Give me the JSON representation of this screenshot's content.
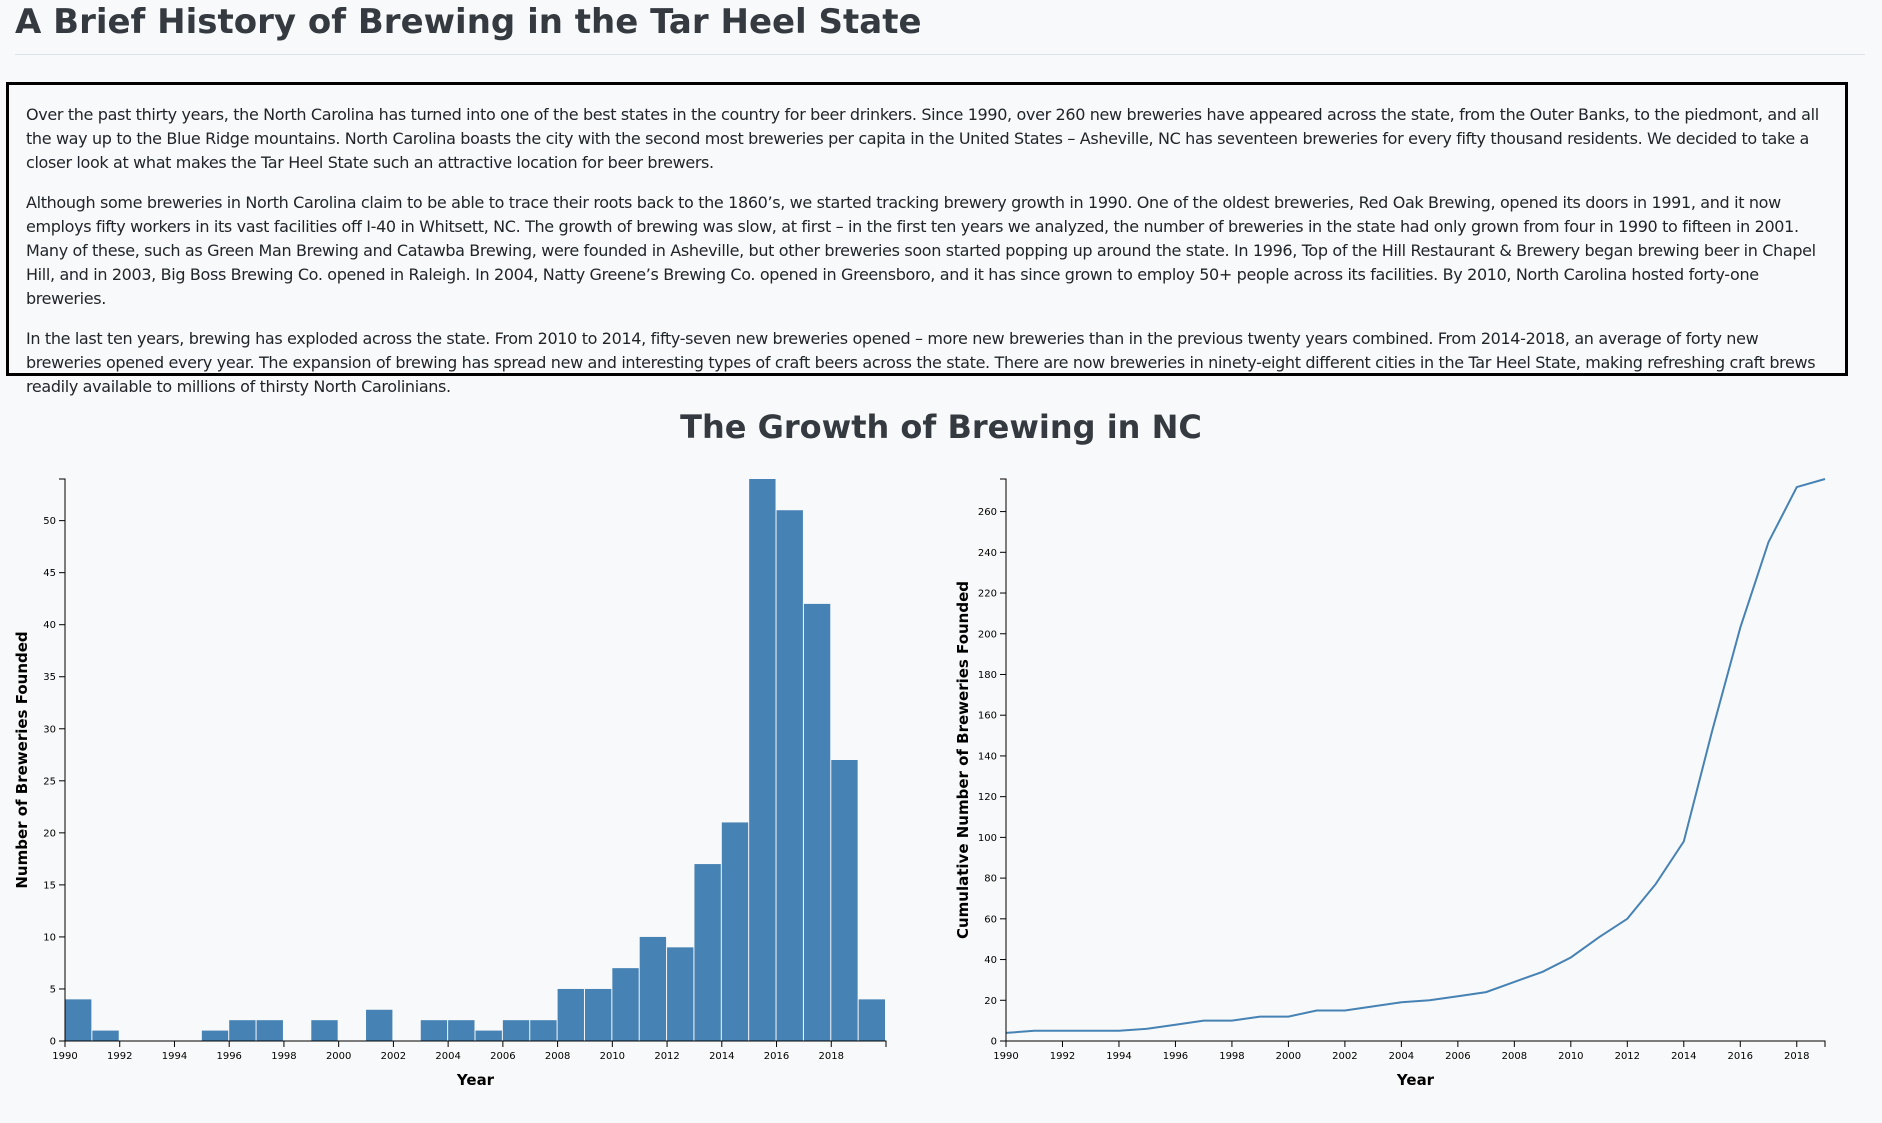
{
  "page": {
    "title": "A Brief History of Brewing in the Tar Heel State",
    "paragraphs": [
      "Over the past thirty years, the North Carolina has turned into one of the best states in the country for beer drinkers. Since 1990, over 260 new breweries have appeared across the state, from the Outer Banks, to the piedmont, and all the way up to the Blue Ridge mountains. North Carolina boasts the city with the second most breweries per capita in the United States – Asheville, NC has seventeen breweries for every fifty thousand residents. We decided to take a closer look at what makes the Tar Heel State such an attractive location for beer brewers.",
      "Although some breweries in North Carolina claim to be able to trace their roots back to the 1860’s, we started tracking brewery growth in 1990. One of the oldest breweries, Red Oak Brewing, opened its doors in 1991, and it now employs fifty workers in its vast facilities off I-40 in Whitsett, NC. The growth of brewing was slow, at first – in the first ten years we analyzed, the number of breweries in the state had only grown from four in 1990 to fifteen in 2001. Many of these, such as Green Man Brewing and Catawba Brewing, were founded in Asheville, but other breweries soon started popping up around the state. In 1996, Top of the Hill Restaurant & Brewery began brewing beer in Chapel Hill, and in 2003, Big Boss Brewing Co. opened in Raleigh. In 2004, Natty Greene’s Brewing Co. opened in Greensboro, and it has since grown to employ 50+ people across its facilities. By 2010, North Carolina hosted forty-one breweries.",
      "In the last ten years, brewing has exploded across the state. From 2010 to 2014, fifty-seven new breweries opened – more new breweries than in the previous twenty years combined. From 2014-2018, an average of forty new breweries opened every year. The expansion of brewing has spread new and interesting types of craft beers across the state. There are now breweries in ninety-eight different cities in the Tar Heel State, making refreshing craft brews readily available to millions of thirsty North Carolinians."
    ],
    "chart_heading": "The Growth of Brewing in NC",
    "bar_color": "#4682b4",
    "line_color": "#4682b4"
  },
  "chart_data": [
    {
      "type": "bar",
      "xlabel": "Year",
      "ylabel": "Number of Breweries Founded",
      "x": [
        1990,
        1991,
        1992,
        1993,
        1994,
        1995,
        1996,
        1997,
        1998,
        1999,
        2000,
        2001,
        2002,
        2003,
        2004,
        2005,
        2006,
        2007,
        2008,
        2009,
        2010,
        2011,
        2012,
        2013,
        2014,
        2015,
        2016,
        2017,
        2018,
        2019
      ],
      "values": [
        4,
        1,
        0,
        0,
        0,
        1,
        2,
        2,
        0,
        2,
        0,
        3,
        0,
        2,
        2,
        1,
        2,
        2,
        5,
        5,
        7,
        10,
        9,
        17,
        21,
        54,
        51,
        42,
        27,
        4
      ],
      "xlim": [
        1990,
        2020
      ],
      "ylim": [
        0,
        54
      ],
      "xticks": [
        1990,
        1992,
        1994,
        1996,
        1998,
        2000,
        2002,
        2004,
        2006,
        2008,
        2010,
        2012,
        2014,
        2016,
        2018
      ],
      "yticks": [
        0,
        5,
        10,
        15,
        20,
        25,
        30,
        35,
        40,
        45,
        50
      ]
    },
    {
      "type": "line",
      "xlabel": "Year",
      "ylabel": "Cumulative Number of Breweries Founded",
      "x": [
        1990,
        1991,
        1992,
        1993,
        1994,
        1995,
        1996,
        1997,
        1998,
        1999,
        2000,
        2001,
        2002,
        2003,
        2004,
        2005,
        2006,
        2007,
        2008,
        2009,
        2010,
        2011,
        2012,
        2013,
        2014,
        2015,
        2016,
        2017,
        2018,
        2019
      ],
      "values": [
        4,
        5,
        5,
        5,
        5,
        6,
        8,
        10,
        10,
        12,
        12,
        15,
        15,
        17,
        19,
        20,
        22,
        24,
        29,
        34,
        41,
        51,
        60,
        77,
        98,
        152,
        203,
        245,
        272,
        276
      ],
      "xlim": [
        1990,
        2019
      ],
      "ylim": [
        0,
        276
      ],
      "xticks": [
        1990,
        1992,
        1994,
        1996,
        1998,
        2000,
        2002,
        2004,
        2006,
        2008,
        2010,
        2012,
        2014,
        2016,
        2018
      ],
      "yticks": [
        0,
        20,
        40,
        60,
        80,
        100,
        120,
        140,
        160,
        180,
        200,
        220,
        240,
        260
      ]
    }
  ]
}
